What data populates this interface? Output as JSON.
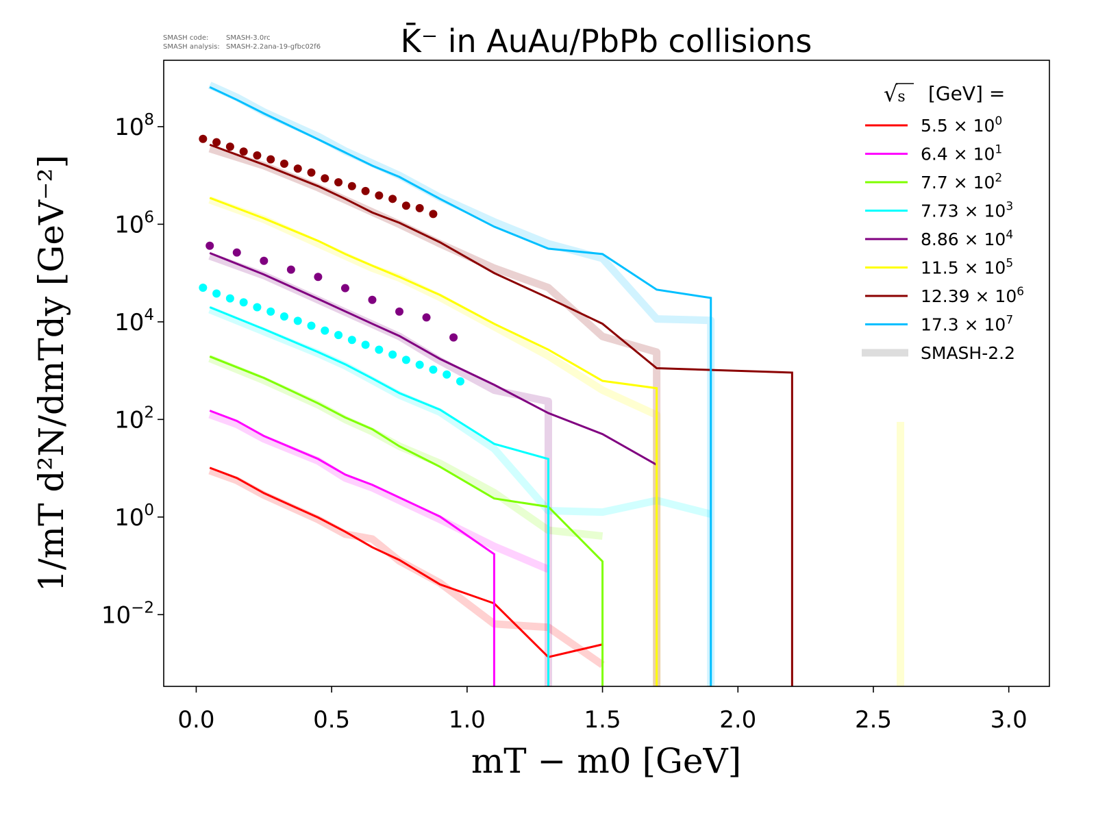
{
  "header": {
    "code_label": "SMASH code:",
    "code_value": "SMASH-3.0rc",
    "analysis_label": "SMASH analysis:",
    "analysis_value": "SMASH-2.2ana-19-gfbc02f6"
  },
  "chart_data": {
    "type": "line",
    "title": "K̄⁻ in AuAu/PbPb collisions",
    "xlabel": "mT − m0 [GeV]",
    "ylabel": "1/mT d²N/dmTdy [GeV⁻²]",
    "xlim": [
      -0.12,
      3.15
    ],
    "ylim_log10": [
      -3.47,
      9.36
    ],
    "yscale": "log",
    "grid": false,
    "x_ticks": [
      "0.0",
      "0.5",
      "1.0",
      "1.5",
      "2.0",
      "2.5",
      "3.0"
    ],
    "x_tick_values": [
      0,
      0.5,
      1,
      1.5,
      2,
      2.5,
      3
    ],
    "y_ticks": [
      {
        "base": "10",
        "exp": "8",
        "v": 8
      },
      {
        "base": "10",
        "exp": "6",
        "v": 6
      },
      {
        "base": "10",
        "exp": "4",
        "v": 4
      },
      {
        "base": "10",
        "exp": "2",
        "v": 2
      },
      {
        "base": "10",
        "exp": "0",
        "v": 0
      },
      {
        "base": "10",
        "exp": "−2",
        "v": -2
      }
    ],
    "legend": {
      "title_sqrt": "s",
      "title_rest": "[GeV] =",
      "placement": "top-right",
      "smash_label": "SMASH-2.2"
    },
    "series": [
      {
        "name": "5.5",
        "scale": "0",
        "color": "#ff0000",
        "x": [
          0.05,
          0.15,
          0.25,
          0.35,
          0.45,
          0.55,
          0.65,
          0.75,
          0.9,
          1.1,
          1.3,
          1.5
        ],
        "log10_values": [
          1.01,
          0.8,
          0.49,
          0.24,
          -0.01,
          -0.3,
          -0.62,
          -0.88,
          -1.38,
          -1.77,
          -2.87,
          -2.61
        ],
        "smash_x": [
          0.05,
          0.15,
          0.25,
          0.45,
          0.55,
          0.65,
          0.75,
          0.9,
          1.1,
          1.3,
          1.5
        ],
        "smash_log10": [
          0.95,
          0.75,
          0.45,
          -0.05,
          -0.35,
          -0.45,
          -0.9,
          -1.35,
          -2.19,
          -2.26,
          -3.03
        ]
      },
      {
        "name": "6.4",
        "scale": "1",
        "color": "#ff00ff",
        "x": [
          0.05,
          0.15,
          0.25,
          0.45,
          0.55,
          0.65,
          0.9,
          1.1
        ],
        "log10_values": [
          2.18,
          1.97,
          1.66,
          1.19,
          0.87,
          0.66,
          0.01,
          -0.76
        ],
        "drop_at": 1.1,
        "smash_x": [
          0.05,
          0.15,
          0.25,
          0.45,
          0.55,
          0.65,
          0.9,
          1.1,
          1.3
        ],
        "smash_log10": [
          2.1,
          1.9,
          1.6,
          1.15,
          0.8,
          0.6,
          -0.05,
          -0.6,
          -1.07
        ]
      },
      {
        "name": "7.7",
        "scale": "2",
        "color": "#7fff00",
        "x": [
          0.05,
          0.25,
          0.45,
          0.55,
          0.65,
          0.75,
          0.9,
          1.1,
          1.3,
          1.5
        ],
        "log10_values": [
          3.29,
          2.85,
          2.33,
          2.04,
          1.8,
          1.45,
          1.03,
          0.38,
          0.21,
          -0.91
        ],
        "drop_at": 1.5,
        "smash_x": [
          0.05,
          0.25,
          0.45,
          0.55,
          0.65,
          0.75,
          0.9,
          1.1,
          1.3,
          1.5
        ],
        "smash_log10": [
          3.25,
          2.8,
          2.3,
          2.0,
          1.75,
          1.45,
          1.1,
          0.5,
          -0.27,
          -0.39
        ]
      },
      {
        "name": "7.73",
        "scale": "3",
        "color": "#00ffff",
        "x": [
          0.05,
          0.25,
          0.45,
          0.55,
          0.65,
          0.75,
          0.9,
          1.1,
          1.3
        ],
        "log10_values": [
          4.3,
          3.85,
          3.38,
          3.13,
          2.84,
          2.54,
          2.2,
          1.5,
          1.19
        ],
        "drop_at": 1.3,
        "smash_x": [
          0.05,
          0.25,
          0.45,
          0.55,
          0.65,
          0.75,
          0.9,
          1.1,
          1.3,
          1.5,
          1.7,
          1.9
        ],
        "smash_log10": [
          4.25,
          3.8,
          3.35,
          3.1,
          2.8,
          2.5,
          2.15,
          1.4,
          0.13,
          0.1,
          0.34,
          0.06
        ],
        "points_x": [
          0.025,
          0.075,
          0.125,
          0.175,
          0.225,
          0.275,
          0.325,
          0.375,
          0.425,
          0.475,
          0.525,
          0.575,
          0.625,
          0.675,
          0.725,
          0.775,
          0.825,
          0.875,
          0.925,
          0.975
        ],
        "points_log10": [
          4.7,
          4.58,
          4.48,
          4.4,
          4.3,
          4.21,
          4.11,
          4.02,
          3.92,
          3.82,
          3.73,
          3.63,
          3.53,
          3.43,
          3.33,
          3.22,
          3.12,
          3.02,
          2.92,
          2.78
        ]
      },
      {
        "name": "8.86",
        "scale": "4",
        "color": "#800080",
        "x": [
          0.05,
          0.25,
          0.45,
          0.65,
          0.75,
          0.9,
          1.1,
          1.3,
          1.5,
          1.7
        ],
        "log10_values": [
          5.41,
          4.97,
          4.47,
          3.96,
          3.71,
          3.24,
          2.71,
          2.13,
          1.7,
          1.07
        ],
        "smash_x": [
          0.05,
          0.25,
          0.45,
          0.65,
          0.75,
          0.9,
          1.1,
          1.3
        ],
        "smash_log10": [
          5.35,
          4.95,
          4.45,
          3.95,
          3.7,
          3.2,
          2.6,
          2.37
        ],
        "smash_drop_at": 1.3,
        "points_x": [
          0.05,
          0.15,
          0.25,
          0.35,
          0.45,
          0.55,
          0.65,
          0.75,
          0.85,
          0.95
        ],
        "points_log10": [
          5.56,
          5.42,
          5.25,
          5.07,
          4.92,
          4.69,
          4.45,
          4.21,
          4.09,
          3.68
        ]
      },
      {
        "name": "11.5",
        "scale": "5",
        "color": "#ffff00",
        "x": [
          0.05,
          0.25,
          0.45,
          0.55,
          0.65,
          0.75,
          0.9,
          1.1,
          1.3,
          1.5,
          1.7
        ],
        "log10_values": [
          6.54,
          6.12,
          5.66,
          5.39,
          5.15,
          4.92,
          4.55,
          3.96,
          3.43,
          2.79,
          2.64
        ],
        "drop_at": 1.7,
        "smash_x": [
          0.05,
          0.25,
          0.45,
          0.55,
          0.65,
          0.75,
          0.9,
          1.1,
          1.3,
          1.5,
          1.7
        ],
        "smash_log10": [
          6.5,
          6.1,
          5.6,
          5.35,
          5.1,
          4.9,
          4.5,
          3.9,
          3.3,
          2.6,
          2.09
        ],
        "smash_drop_at": 1.7
      },
      {
        "name": "12.39",
        "scale": "6",
        "color": "#8b0000",
        "x": [
          0.05,
          0.25,
          0.45,
          0.55,
          0.65,
          0.75,
          0.9,
          1.1,
          1.3,
          1.5,
          1.7,
          2.2
        ],
        "log10_values": [
          7.63,
          7.22,
          6.78,
          6.52,
          6.24,
          6.03,
          5.63,
          5.0,
          4.49,
          3.96,
          3.05,
          2.96
        ],
        "drop_at": 2.2,
        "smash_x": [
          0.05,
          0.25,
          0.45,
          0.55,
          0.65,
          0.75,
          0.9,
          1.1,
          1.3,
          1.5,
          1.7
        ],
        "smash_log10": [
          7.55,
          7.2,
          6.75,
          6.5,
          6.25,
          6.0,
          5.6,
          5.1,
          4.7,
          3.7,
          3.38
        ],
        "smash_drop_at": 1.7,
        "points_x": [
          0.025,
          0.075,
          0.125,
          0.175,
          0.225,
          0.275,
          0.325,
          0.375,
          0.425,
          0.475,
          0.525,
          0.575,
          0.625,
          0.675,
          0.725,
          0.775,
          0.825,
          0.875
        ],
        "points_log10": [
          7.75,
          7.68,
          7.59,
          7.49,
          7.41,
          7.33,
          7.24,
          7.14,
          7.06,
          6.94,
          6.86,
          6.78,
          6.68,
          6.59,
          6.52,
          6.38,
          6.33,
          6.21
        ]
      },
      {
        "name": "17.3",
        "scale": "7",
        "color": "#00bfff",
        "x": [
          0.05,
          0.15,
          0.25,
          0.45,
          0.55,
          0.65,
          0.75,
          0.9,
          1.1,
          1.3,
          1.5,
          1.7,
          1.9
        ],
        "log10_values": [
          8.81,
          8.55,
          8.27,
          7.74,
          7.47,
          7.2,
          6.97,
          6.52,
          5.95,
          5.5,
          5.39,
          4.66,
          4.49
        ],
        "drop_at": 1.9,
        "smash_x": [
          0.05,
          0.15,
          0.25,
          0.45,
          0.55,
          0.65,
          0.75,
          0.9,
          1.1,
          1.3,
          1.5,
          1.7,
          1.9
        ],
        "smash_log10": [
          8.85,
          8.6,
          8.3,
          7.8,
          7.5,
          7.25,
          7.0,
          6.55,
          6.05,
          5.6,
          5.3,
          4.06,
          4.03
        ],
        "smash_drop_at": 1.9
      }
    ],
    "extra_smash_vertical": {
      "x": 2.6,
      "color": "#ffff00",
      "from_log10": 1.95
    }
  }
}
